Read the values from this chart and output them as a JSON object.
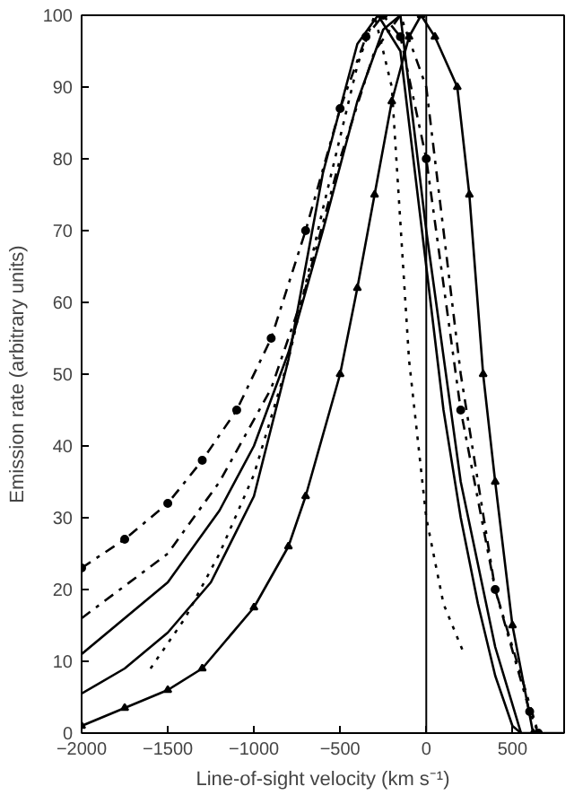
{
  "chart_data": {
    "type": "line",
    "xlabel": "Line-of-sight velocity (km s⁻¹)",
    "ylabel": "Emission rate (arbitrary units)",
    "xlim": [
      -2000,
      800
    ],
    "ylim": [
      0,
      100
    ],
    "xticks": [
      -2000,
      -1500,
      -1000,
      -500,
      0,
      500
    ],
    "yticks": [
      0,
      10,
      20,
      30,
      40,
      50,
      60,
      70,
      80,
      90,
      100
    ],
    "grid": false,
    "ref_lines": [
      {
        "axis": "x",
        "value": 0,
        "color": "#000000",
        "line_style": "solid"
      }
    ],
    "series": [
      {
        "color": "#000000",
        "line_style": "solid",
        "marker": "none",
        "x": [
          -2000,
          -1750,
          -1500,
          -1250,
          -1000,
          -800,
          -600,
          -400,
          -280,
          -150,
          0,
          100,
          200,
          300,
          400,
          500,
          550,
          800
        ],
        "values": [
          5.5,
          9,
          14,
          21,
          33,
          52,
          78,
          96,
          100,
          95,
          65,
          45,
          30,
          18,
          8,
          1,
          0,
          0
        ]
      },
      {
        "color": "#000000",
        "line_style": "solid",
        "marker": "triangle",
        "x": [
          -2000,
          -1750,
          -1500,
          -1300,
          -1000,
          -800,
          -700,
          -500,
          -400,
          -300,
          -200,
          -100,
          -30,
          50,
          180,
          250,
          330,
          400,
          500,
          620
        ],
        "values": [
          1,
          3.5,
          6,
          9,
          17.5,
          26,
          33,
          50,
          62,
          75,
          88,
          97,
          100,
          97,
          90,
          75,
          50,
          35,
          15,
          0
        ]
      },
      {
        "color": "#000000",
        "line_style": "dashdot",
        "marker": "circle",
        "x": [
          -2000,
          -1750,
          -1500,
          -1300,
          -1100,
          -900,
          -700,
          -500,
          -350,
          -250,
          -150,
          0,
          200,
          400,
          600,
          650
        ],
        "values": [
          23,
          27,
          32,
          38,
          45,
          55,
          70,
          87,
          97,
          100,
          97,
          80,
          45,
          20,
          3,
          0
        ]
      },
      {
        "color": "#000000",
        "line_style": "dashdot",
        "marker": "none",
        "x": [
          -2000,
          -1500,
          -1200,
          -900,
          -700,
          -500,
          -300,
          -150,
          0,
          200,
          400,
          650
        ],
        "values": [
          16,
          25,
          35,
          48,
          62,
          80,
          95,
          100,
          90,
          50,
          20,
          0
        ]
      },
      {
        "color": "#000000",
        "line_style": "solid",
        "marker": "none",
        "x": [
          -2000,
          -1500,
          -1200,
          -1000,
          -800,
          -600,
          -400,
          -250,
          -150,
          0,
          200,
          400,
          550
        ],
        "values": [
          11,
          21,
          31,
          40,
          53,
          70,
          88,
          98,
          100,
          70,
          35,
          12,
          0
        ]
      },
      {
        "color": "#000000",
        "line_style": "dotted",
        "marker": "none",
        "x": [
          -1600,
          -1400,
          -1200,
          -1000,
          -800,
          -600,
          -400,
          -300,
          -200,
          -100,
          0,
          100,
          220
        ],
        "values": [
          9,
          16,
          25,
          36,
          52,
          73,
          93,
          100,
          90,
          52,
          30,
          18,
          11
        ]
      }
    ]
  }
}
